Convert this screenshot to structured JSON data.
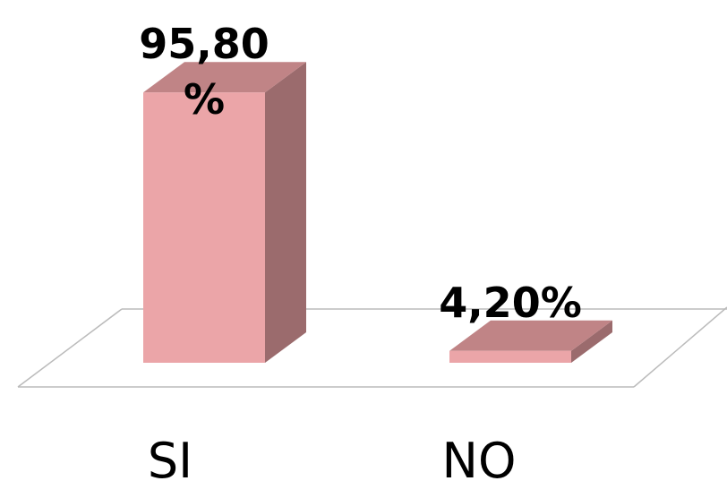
{
  "chart_data": {
    "type": "bar3d",
    "categories": [
      "SI",
      "NO"
    ],
    "values": [
      95.8,
      4.2
    ],
    "value_labels": [
      "95,80 %",
      "4,20%"
    ],
    "color": "#eba5a8"
  }
}
